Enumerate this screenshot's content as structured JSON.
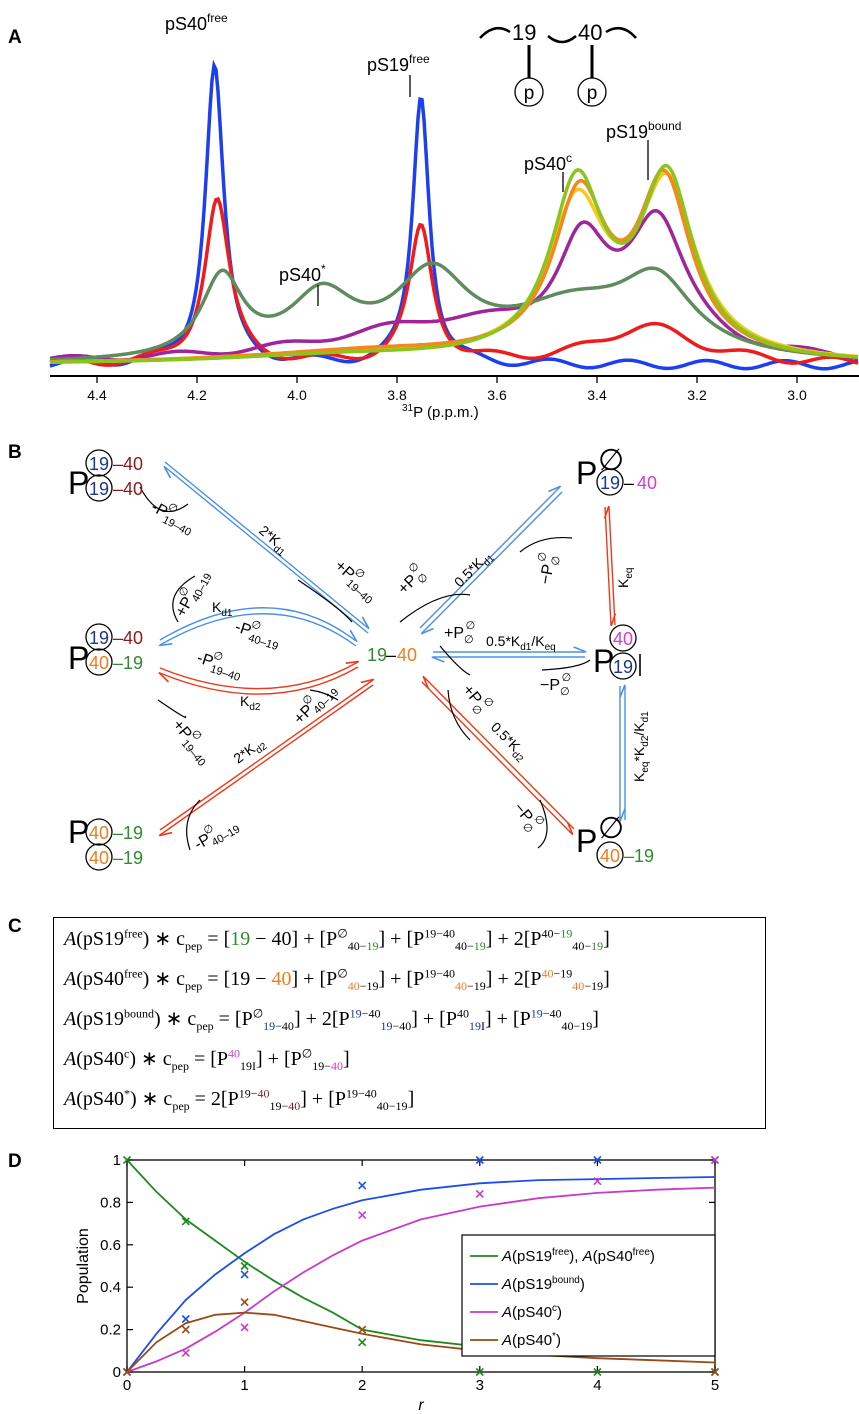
{
  "panels": {
    "a": "A",
    "b": "B",
    "c": "C",
    "d": "D"
  },
  "panel_a": {
    "peak_labels": {
      "ps40_free": {
        "base": "pS40",
        "sup": "free"
      },
      "ps19_free": {
        "base": "pS19",
        "sup": "free"
      },
      "ps40_star": {
        "base": "pS40",
        "sup": "*"
      },
      "ps40_c": {
        "base": "pS40",
        "sup": "c"
      },
      "ps19_bound": {
        "base": "pS19",
        "sup": "bound"
      }
    },
    "schematic": {
      "res1": "19",
      "res2": "40",
      "phospho": "p"
    },
    "xaxis_label": {
      "sup": "31",
      "text": "P (p.p.m.)"
    },
    "ticks": [
      "4.4",
      "4.2",
      "4.0",
      "3.8",
      "3.6",
      "3.4",
      "3.2",
      "3.0"
    ],
    "colors": {
      "blue": "#1c3ff0",
      "red": "#ee1c1c",
      "purple": "#a0259a",
      "grey_green": "#5e8c5e",
      "yellow": "#f6c81e",
      "orange": "#f6871a",
      "lime": "#8cc41e"
    }
  },
  "panel_b": {
    "dimer_label": "19–40",
    "rates": {
      "k1": "2*K",
      "k1_sub": "d1",
      "k2": "K",
      "k2_sub": "d1",
      "k3": "K",
      "k3_sub": "d2",
      "k4": "2*K",
      "k4_sub": "d2",
      "k5": "0.5*K",
      "k5_sub": "d1",
      "k6": "0.5*K",
      "k6_mid": "d1",
      "k6_rest": "/K",
      "k6_sub": "eq",
      "k7": "0.5*K",
      "k7_sub": "d2",
      "k8": "K",
      "k8_sub": "eq",
      "k9": "K",
      "k9_a": "eq",
      "k9_b": "*K",
      "k9_c": "d2",
      "k9_d": "/K",
      "k9_e": "d1"
    },
    "empty_set": "∅",
    "p": "P",
    "colors": {
      "dark_blue": "#1f3690",
      "dark_red": "#8b1a1a",
      "green": "#2e8b2e",
      "orange": "#f07c1e",
      "magenta": "#d63ad6"
    }
  },
  "panel_c": {
    "lhs": [
      {
        "name": "pS19",
        "sup": "free"
      },
      {
        "name": "pS40",
        "sup": "free"
      },
      {
        "name": "pS19",
        "sup": "bound"
      },
      {
        "name": "pS40",
        "sup": "c"
      },
      {
        "name": "pS40",
        "sup": "*"
      }
    ],
    "c_pep": "c",
    "pep": "pep"
  },
  "chart_data": {
    "type": "line",
    "xlabel": "r",
    "ylabel": "Population",
    "xlim": [
      0,
      5
    ],
    "ylim": [
      0,
      1
    ],
    "xticks": [
      "0",
      "1",
      "2",
      "3",
      "4",
      "5"
    ],
    "yticks": [
      "0",
      "0.2",
      "0.4",
      "0.6",
      "0.8",
      "1"
    ],
    "legend_position": "right-center",
    "series": [
      {
        "name": "A(pS19free), A(pS40free)",
        "color": "#1e8a1e",
        "fit_x": [
          0,
          0.25,
          0.5,
          0.75,
          1,
          1.25,
          1.5,
          1.75,
          2,
          2.5,
          3,
          3.5,
          4,
          4.5,
          5
        ],
        "fit_y": [
          1.0,
          0.85,
          0.72,
          0.62,
          0.52,
          0.43,
          0.35,
          0.28,
          0.2,
          0.15,
          0.12,
          0.1,
          0.09,
          0.085,
          0.08
        ],
        "points_x": [
          0,
          0.5,
          1,
          2,
          3,
          4,
          5
        ],
        "points_y": [
          1.0,
          0.71,
          0.5,
          0.14,
          0.0,
          0.0,
          0.0
        ]
      },
      {
        "name": "A(pS19bound)",
        "color": "#1e4ee8",
        "fit_x": [
          0,
          0.25,
          0.5,
          0.75,
          1,
          1.25,
          1.5,
          1.75,
          2,
          2.5,
          3,
          3.5,
          4,
          4.5,
          5
        ],
        "fit_y": [
          0,
          0.18,
          0.34,
          0.46,
          0.56,
          0.65,
          0.72,
          0.77,
          0.81,
          0.86,
          0.89,
          0.905,
          0.91,
          0.915,
          0.92
        ],
        "points_x": [
          0,
          0.5,
          1,
          2,
          3,
          4,
          5
        ],
        "points_y": [
          0.0,
          0.25,
          0.46,
          0.88,
          1.0,
          1.0,
          1.0
        ]
      },
      {
        "name": "A(pS40c)",
        "color": "#c83ac8",
        "fit_x": [
          0,
          0.25,
          0.5,
          0.75,
          1,
          1.25,
          1.5,
          1.75,
          2,
          2.5,
          3,
          3.5,
          4,
          4.5,
          5
        ],
        "fit_y": [
          0,
          0.05,
          0.11,
          0.19,
          0.28,
          0.38,
          0.47,
          0.55,
          0.62,
          0.72,
          0.78,
          0.82,
          0.845,
          0.86,
          0.87
        ],
        "points_x": [
          0,
          0.5,
          1,
          2,
          3,
          4,
          5
        ],
        "points_y": [
          0.0,
          0.09,
          0.21,
          0.74,
          0.84,
          0.9,
          1.0
        ]
      },
      {
        "name": "A(pS40*)",
        "color": "#9a4a12",
        "fit_x": [
          0,
          0.25,
          0.5,
          0.75,
          1,
          1.25,
          1.5,
          1.75,
          2,
          2.5,
          3,
          3.5,
          4,
          4.5,
          5
        ],
        "fit_y": [
          0,
          0.14,
          0.23,
          0.27,
          0.28,
          0.27,
          0.24,
          0.21,
          0.18,
          0.13,
          0.1,
          0.08,
          0.065,
          0.055,
          0.045
        ],
        "points_x": [
          0,
          0.5,
          1,
          2,
          3,
          4,
          5
        ],
        "points_y": [
          0.0,
          0.2,
          0.33,
          0.2,
          0.16,
          0.1,
          0.0
        ]
      }
    ],
    "legend": [
      {
        "text": "A",
        "a": "(pS19",
        "sup": "free",
        "b": "), ",
        "text2": "A",
        "c": "(pS40",
        "sup2": "free",
        "d": ")"
      },
      {
        "text": "A",
        "a": "(pS19",
        "sup": "bound",
        "b": ")"
      },
      {
        "text": "A",
        "a": "(pS40",
        "sup": "c",
        "b": ")"
      },
      {
        "text": "A",
        "a": "(pS40",
        "sup": "*",
        "b": ")"
      }
    ]
  }
}
